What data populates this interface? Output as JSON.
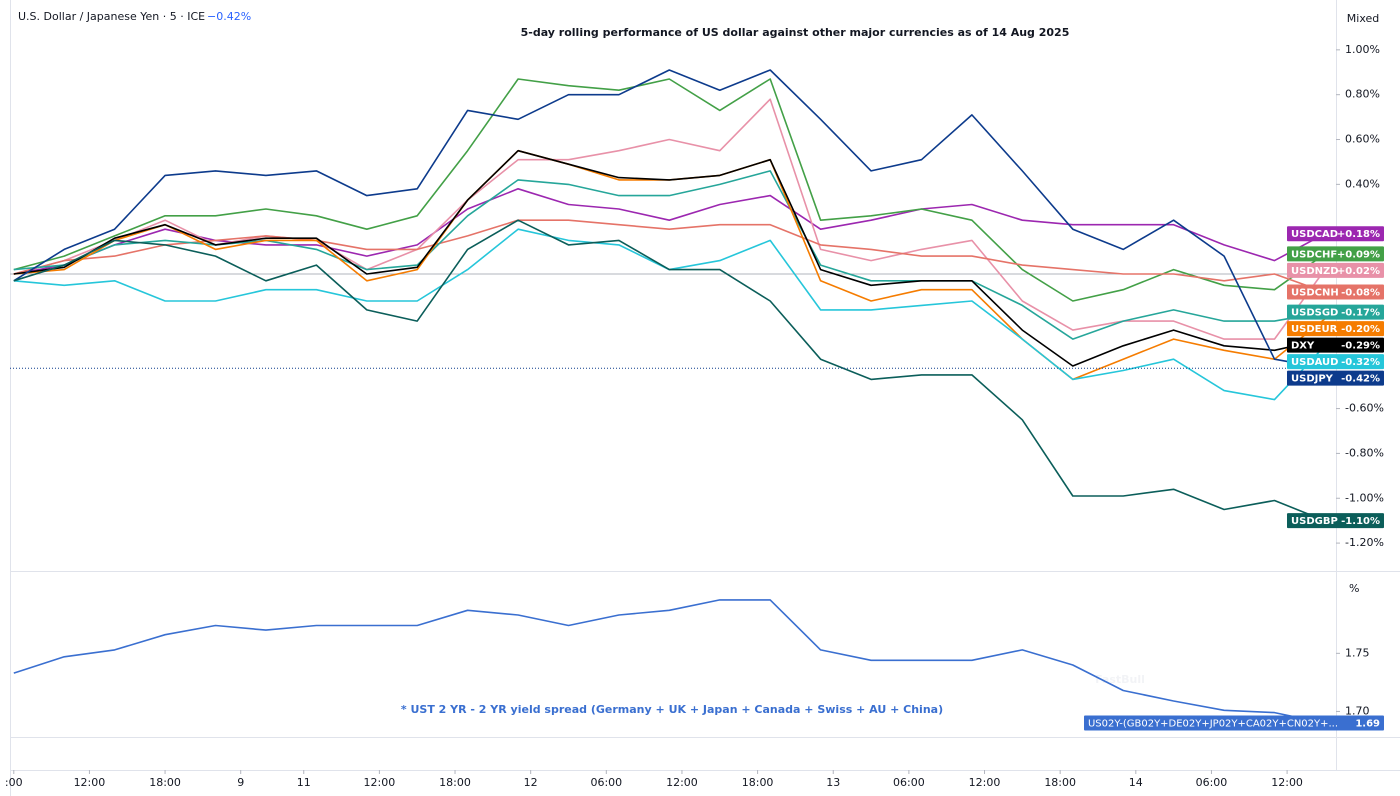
{
  "header": {
    "symbol": "U.S. Dollar / Japanese Yen · 5 · ICE",
    "change": "−0.42%",
    "mode": "Mixed"
  },
  "chart_data": [
    {
      "type": "line",
      "title": "5-day rolling performance of US dollar against other major currencies as of 14 Aug 2025",
      "x": [
        0,
        4,
        8,
        12,
        16,
        20,
        24,
        28,
        32,
        36,
        40,
        44,
        48,
        52,
        56,
        60,
        64,
        68,
        72,
        76,
        80,
        84,
        88,
        92,
        96,
        100,
        104
      ],
      "xlim": [
        -0.3,
        104.8
      ],
      "ylim": [
        -1.32,
        1.2
      ],
      "yticks": [
        {
          "value": 1,
          "label": "1.00%"
        },
        {
          "value": 0.8,
          "label": "0.80%"
        },
        {
          "value": 0.6,
          "label": "0.60%"
        },
        {
          "value": 0.4,
          "label": "0.40%"
        },
        {
          "value": -0.6,
          "label": "-0.60%"
        },
        {
          "value": -0.8,
          "label": "-0.80%"
        },
        {
          "value": -1,
          "label": "-1.00%"
        },
        {
          "value": -1.2,
          "label": "-1.20%"
        }
      ],
      "zero_line": true,
      "series": [
        {
          "name": "USDCAD",
          "color": "#9c27b0",
          "end_label": "+0.18%",
          "values": [
            0.0,
            0.04,
            0.13,
            0.2,
            0.15,
            0.13,
            0.13,
            0.08,
            0.13,
            0.29,
            0.38,
            0.31,
            0.29,
            0.24,
            0.31,
            0.35,
            0.2,
            0.24,
            0.29,
            0.31,
            0.24,
            0.22,
            0.22,
            0.22,
            0.13,
            0.06,
            0.18
          ]
        },
        {
          "name": "USDCHF",
          "color": "#43a047",
          "end_label": "+0.09%",
          "values": [
            0.02,
            0.08,
            0.17,
            0.26,
            0.26,
            0.29,
            0.26,
            0.2,
            0.26,
            0.55,
            0.87,
            0.84,
            0.82,
            0.87,
            0.73,
            0.87,
            0.24,
            0.26,
            0.29,
            0.24,
            0.02,
            -0.12,
            -0.07,
            0.02,
            -0.05,
            -0.07,
            0.09
          ]
        },
        {
          "name": "USDNZD",
          "color": "#e891a8",
          "end_label": "+0.02%",
          "values": [
            0.0,
            0.06,
            0.15,
            0.24,
            0.13,
            0.17,
            0.15,
            0.02,
            0.11,
            0.33,
            0.51,
            0.51,
            0.55,
            0.6,
            0.55,
            0.78,
            0.11,
            0.06,
            0.11,
            0.15,
            -0.12,
            -0.25,
            -0.21,
            -0.21,
            -0.29,
            -0.29,
            0.02
          ]
        },
        {
          "name": "USDCNH",
          "color": "#e57368",
          "end_label": "-0.08%",
          "values": [
            0.0,
            0.06,
            0.08,
            0.13,
            0.15,
            0.17,
            0.15,
            0.11,
            0.11,
            0.17,
            0.24,
            0.24,
            0.22,
            0.2,
            0.22,
            0.22,
            0.13,
            0.11,
            0.08,
            0.08,
            0.04,
            0.02,
            0.0,
            0.0,
            -0.03,
            0.0,
            -0.08
          ]
        },
        {
          "name": "USDSGD",
          "color": "#26a69a",
          "end_label": "-0.17%",
          "values": [
            0.02,
            0.04,
            0.13,
            0.15,
            0.13,
            0.15,
            0.11,
            0.02,
            0.04,
            0.26,
            0.42,
            0.4,
            0.35,
            0.35,
            0.4,
            0.46,
            0.04,
            -0.03,
            -0.03,
            -0.03,
            -0.14,
            -0.29,
            -0.21,
            -0.16,
            -0.21,
            -0.21,
            -0.17
          ]
        },
        {
          "name": "USDEUR",
          "color": "#f57c00",
          "end_label": "-0.20%",
          "values": [
            0.0,
            0.02,
            0.15,
            0.22,
            0.11,
            0.15,
            0.15,
            -0.03,
            0.02,
            0.33,
            0.55,
            0.49,
            0.42,
            0.42,
            0.44,
            0.51,
            -0.03,
            -0.12,
            -0.07,
            -0.07,
            -0.29,
            -0.47,
            -0.38,
            -0.29,
            -0.34,
            -0.38,
            -0.2
          ]
        },
        {
          "name": "DXY",
          "color": "#000000",
          "end_label": "-0.29%",
          "values": [
            0.0,
            0.03,
            0.16,
            0.22,
            0.13,
            0.16,
            0.16,
            0.0,
            0.03,
            0.33,
            0.55,
            0.49,
            0.43,
            0.42,
            0.44,
            0.51,
            0.02,
            -0.05,
            -0.03,
            -0.03,
            -0.25,
            -0.41,
            -0.32,
            -0.25,
            -0.32,
            -0.34,
            -0.29
          ]
        },
        {
          "name": "USDAUD",
          "color": "#26c6da",
          "end_label": "-0.32%",
          "values": [
            -0.03,
            -0.05,
            -0.03,
            -0.12,
            -0.12,
            -0.07,
            -0.07,
            -0.12,
            -0.12,
            0.02,
            0.2,
            0.15,
            0.13,
            0.02,
            0.06,
            0.15,
            -0.16,
            -0.16,
            -0.14,
            -0.12,
            -0.29,
            -0.47,
            -0.43,
            -0.38,
            -0.52,
            -0.56,
            -0.32
          ]
        },
        {
          "name": "USDJPY",
          "color": "#0d3b8c",
          "end_label": "-0.42%",
          "values": [
            -0.03,
            0.11,
            0.2,
            0.44,
            0.46,
            0.44,
            0.46,
            0.35,
            0.38,
            0.73,
            0.69,
            0.8,
            0.8,
            0.91,
            0.82,
            0.91,
            0.69,
            0.46,
            0.51,
            0.71,
            0.46,
            0.2,
            0.11,
            0.24,
            0.08,
            -0.38,
            -0.42
          ]
        },
        {
          "name": "USDGBP",
          "color": "#0b5e5a",
          "end_label": "-1.10%",
          "values": [
            -0.03,
            0.04,
            0.15,
            0.13,
            0.08,
            -0.03,
            0.04,
            -0.16,
            -0.21,
            0.11,
            0.24,
            0.13,
            0.15,
            0.02,
            0.02,
            -0.12,
            -0.38,
            -0.47,
            -0.45,
            -0.45,
            -0.65,
            -0.99,
            -0.99,
            -0.96,
            -1.05,
            -1.01,
            -1.1
          ]
        }
      ]
    },
    {
      "type": "line",
      "annotation": "* UST 2 YR - 2 YR yield spread (Germany + UK + Japan + Canada + Swiss + AU + China)",
      "watermark": "FastBull",
      "y_unit": "%",
      "x": [
        0,
        4,
        8,
        12,
        16,
        20,
        24,
        28,
        32,
        36,
        40,
        44,
        48,
        52,
        56,
        60,
        64,
        68,
        72,
        76,
        80,
        84,
        88,
        92,
        96,
        100,
        104
      ],
      "xlim": [
        -0.3,
        104.8
      ],
      "xticks": [
        {
          "value": 0,
          "label": ":00"
        },
        {
          "value": 6,
          "label": "12:00"
        },
        {
          "value": 12,
          "label": "18:00"
        },
        {
          "value": 18,
          "label": "9"
        },
        {
          "value": 23,
          "label": "11"
        },
        {
          "value": 29,
          "label": "12:00"
        },
        {
          "value": 35,
          "label": "18:00"
        },
        {
          "value": 41,
          "label": "12"
        },
        {
          "value": 47,
          "label": "06:00"
        },
        {
          "value": 53,
          "label": "12:00"
        },
        {
          "value": 59,
          "label": "18:00"
        },
        {
          "value": 65,
          "label": "13"
        },
        {
          "value": 71,
          "label": "06:00"
        },
        {
          "value": 77,
          "label": "12:00"
        },
        {
          "value": 83,
          "label": "18:00"
        },
        {
          "value": 89,
          "label": "14"
        },
        {
          "value": 95,
          "label": "06:00"
        },
        {
          "value": 101,
          "label": "12:00"
        }
      ],
      "ylim": [
        1.678,
        1.82
      ],
      "yticks": [
        1.75,
        {
          "value": 1.7,
          "label": "1.70"
        }
      ],
      "series": [
        {
          "name": "US02Y-(GB02Y+DE02Y+JP02Y+CA02Y+CN02Y+...",
          "color": "#3a6fd0",
          "end_label": "1.69",
          "values": [
            1.733,
            1.747,
            1.753,
            1.766,
            1.774,
            1.77,
            1.774,
            1.774,
            1.774,
            1.787,
            1.783,
            1.774,
            1.783,
            1.787,
            1.796,
            1.796,
            1.753,
            1.744,
            1.744,
            1.744,
            1.753,
            1.74,
            1.718,
            1.709,
            1.701,
            1.699,
            1.69
          ]
        }
      ]
    }
  ]
}
